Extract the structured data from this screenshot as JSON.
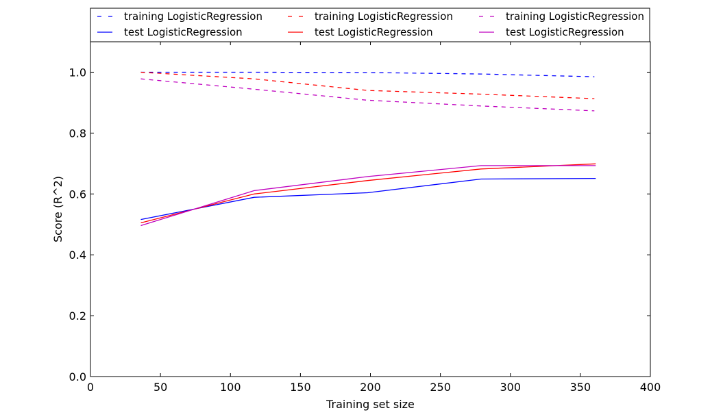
{
  "chart_data": {
    "type": "line",
    "title": "",
    "xlabel": "Training set size",
    "ylabel": "Score (R^2)",
    "xlim": [
      0,
      400
    ],
    "ylim": [
      0,
      1.1
    ],
    "xticks": [
      0,
      50,
      100,
      150,
      200,
      250,
      300,
      350,
      400
    ],
    "yticks": [
      0.0,
      0.2,
      0.4,
      0.6,
      0.8,
      1.0
    ],
    "xtick_labels": [
      "0",
      "50",
      "100",
      "150",
      "200",
      "250",
      "300",
      "350",
      "400"
    ],
    "ytick_labels": [
      "0.0",
      "0.2",
      "0.4",
      "0.6",
      "0.8",
      "1.0"
    ],
    "grid": false,
    "legend_position": "top",
    "series": [
      {
        "name": "training LogisticRegression",
        "color": "#0000ff",
        "style": "dashed",
        "x": [
          36,
          117,
          198,
          279,
          360
        ],
        "y": [
          1.0,
          1.0,
          0.999,
          0.994,
          0.985
        ]
      },
      {
        "name": "test LogisticRegression",
        "color": "#0000ff",
        "style": "solid",
        "x": [
          36,
          117,
          198,
          279,
          361
        ],
        "y": [
          0.516,
          0.589,
          0.604,
          0.649,
          0.651
        ]
      },
      {
        "name": "training LogisticRegression",
        "color": "#ff0000",
        "style": "dashed",
        "x": [
          36,
          117,
          198,
          279,
          360
        ],
        "y": [
          1.0,
          0.978,
          0.94,
          0.928,
          0.913
        ]
      },
      {
        "name": "test LogisticRegression",
        "color": "#ff0000",
        "style": "solid",
        "x": [
          36,
          117,
          198,
          279,
          361
        ],
        "y": [
          0.505,
          0.6,
          0.644,
          0.682,
          0.699
        ]
      },
      {
        "name": "training LogisticRegression",
        "color": "#bf00bf",
        "style": "dashed",
        "x": [
          36,
          117,
          198,
          279,
          360
        ],
        "y": [
          0.978,
          0.944,
          0.908,
          0.889,
          0.873
        ]
      },
      {
        "name": "test LogisticRegression",
        "color": "#bf00bf",
        "style": "solid",
        "x": [
          36,
          117,
          198,
          279,
          361
        ],
        "y": [
          0.496,
          0.611,
          0.657,
          0.693,
          0.693
        ]
      }
    ]
  }
}
